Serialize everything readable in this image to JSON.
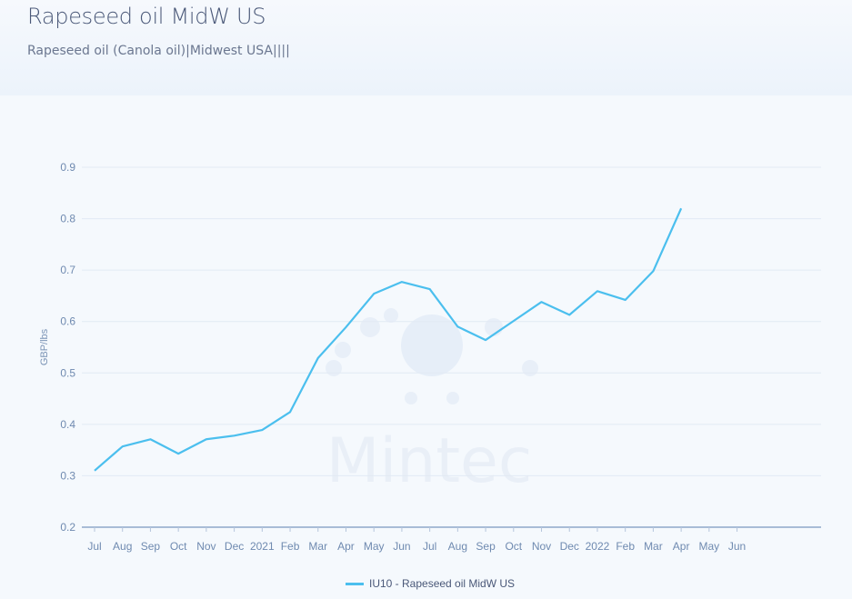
{
  "header": {
    "title": "Rapeseed oil MidW US",
    "subtitle": "Rapeseed oil (Canola oil)|Midwest USA||||"
  },
  "watermark": "Mintec",
  "chart_data": {
    "type": "line",
    "title": "",
    "xlabel": "",
    "ylabel": "GBP/lbs",
    "ylim": [
      0.2,
      0.9
    ],
    "yticks": [
      "0.2",
      "0.3",
      "0.4",
      "0.5",
      "0.6",
      "0.7",
      "0.8",
      "0.9"
    ],
    "grid": true,
    "legend_position": "bottom",
    "xticks": [
      "Jul",
      "Aug",
      "Sep",
      "Oct",
      "Nov",
      "Dec",
      "2021",
      "Feb",
      "Mar",
      "Apr",
      "May",
      "Jun",
      "Jul",
      "Aug",
      "Sep",
      "Oct",
      "Nov",
      "Dec",
      "2022",
      "Feb",
      "Mar",
      "Apr",
      "May",
      "Jun"
    ],
    "series": [
      {
        "name": "IU10 - Rapeseed oil MidW US",
        "color": "#4bbfee",
        "x": [
          "2020-07",
          "2020-08",
          "2020-09",
          "2020-10",
          "2020-11",
          "2020-12",
          "2021-01",
          "2021-02",
          "2021-03",
          "2021-04",
          "2021-05",
          "2021-06",
          "2021-07",
          "2021-08",
          "2021-09",
          "2021-10",
          "2021-11",
          "2021-12",
          "2022-01",
          "2022-02",
          "2022-03",
          "2022-04"
        ],
        "values": [
          0.31,
          0.357,
          0.371,
          0.343,
          0.371,
          0.378,
          0.389,
          0.424,
          0.529,
          0.589,
          0.654,
          0.677,
          0.663,
          0.59,
          0.564,
          0.601,
          0.638,
          0.613,
          0.659,
          0.642,
          0.698,
          0.82
        ]
      }
    ]
  }
}
